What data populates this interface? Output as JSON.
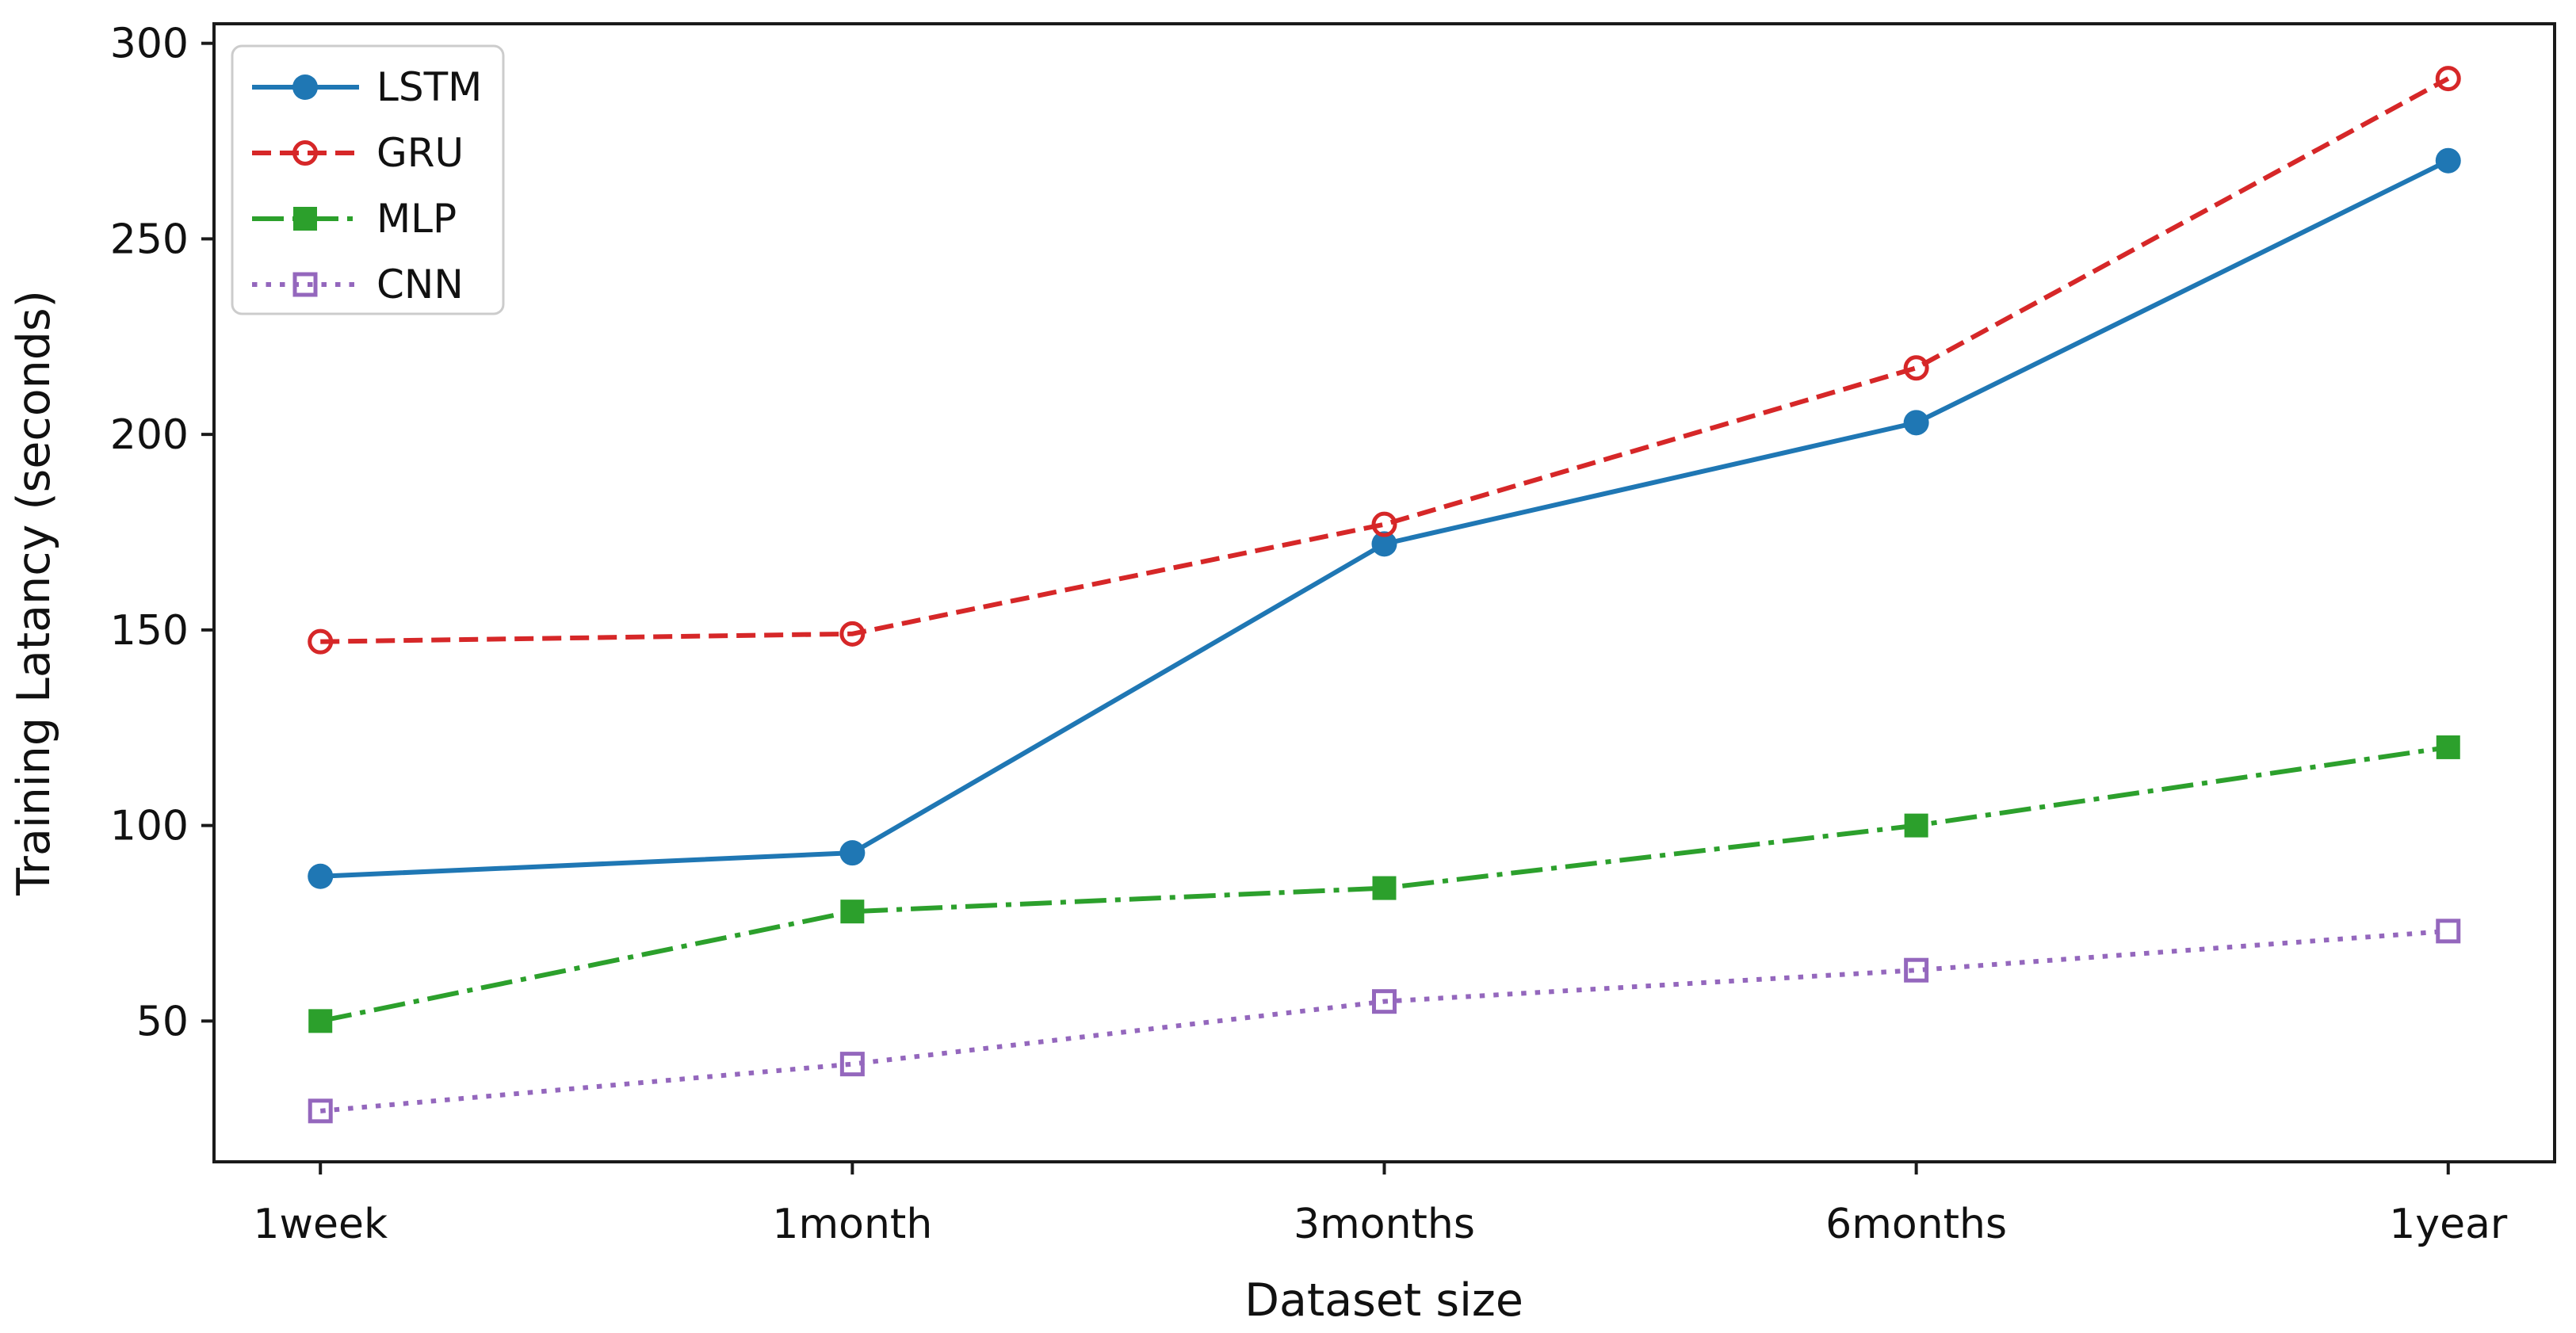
{
  "figure": {
    "background": "#ffffff",
    "spine_color": "#1a1a1a",
    "text_color": "#111111",
    "legend_border_color": "#cccccc"
  },
  "chart_data": {
    "type": "line",
    "title": "",
    "xlabel": "Dataset size",
    "ylabel": "Training Latancy (seconds)",
    "categories": [
      "1week",
      "1month",
      "3months",
      "6months",
      "1year"
    ],
    "series": [
      {
        "name": "LSTM",
        "color": "#1f77b4",
        "linestyle": "solid",
        "marker": "circle-filled",
        "values": [
          87,
          93,
          172,
          203,
          270
        ]
      },
      {
        "name": "GRU",
        "color": "#d62728",
        "linestyle": "dashed",
        "marker": "circle-open",
        "values": [
          147,
          149,
          177,
          217,
          291
        ]
      },
      {
        "name": "MLP",
        "color": "#2ca02c",
        "linestyle": "dashdot",
        "marker": "square-filled",
        "values": [
          50,
          78,
          84,
          100,
          120
        ]
      },
      {
        "name": "CNN",
        "color": "#9467bd",
        "linestyle": "dotted",
        "marker": "square-open",
        "values": [
          27,
          39,
          55,
          63,
          73
        ]
      }
    ],
    "yticks": [
      50,
      100,
      150,
      200,
      250,
      300
    ],
    "ylim": [
      14,
      305
    ],
    "grid": false,
    "legend_position": "upper left"
  }
}
